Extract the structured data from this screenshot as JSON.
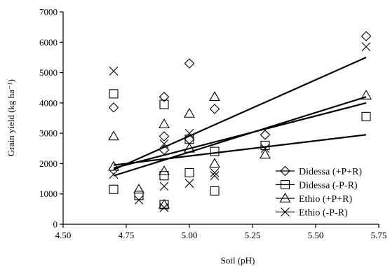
{
  "chart_data": {
    "type": "scatter",
    "xlabel": "Soil (pH)",
    "ylabel": "Grain yield (kg ha⁻¹)",
    "xlim": [
      4.5,
      5.75
    ],
    "ylim": [
      0,
      7000
    ],
    "x_ticks": [
      "4.50",
      "4.75",
      "5.00",
      "5.25",
      "5.50",
      "5.75"
    ],
    "y_ticks": [
      "0",
      "1000",
      "2000",
      "3000",
      "4000",
      "5000",
      "6000",
      "7000"
    ],
    "x_tick_values": [
      4.5,
      4.75,
      5.0,
      5.25,
      5.5,
      5.75
    ],
    "y_tick_values": [
      0,
      1000,
      2000,
      3000,
      4000,
      5000,
      6000,
      7000
    ],
    "grid": false,
    "legend_position": "bottom-right",
    "series": [
      {
        "name": "Didessa (+P+R)",
        "marker": "diamond",
        "points": [
          [
            4.7,
            3850
          ],
          [
            4.9,
            4200
          ],
          [
            4.9,
            2900
          ],
          [
            4.9,
            2450
          ],
          [
            5.0,
            5300
          ],
          [
            5.0,
            2800
          ],
          [
            5.1,
            3800
          ],
          [
            5.3,
            2950
          ],
          [
            5.7,
            6200
          ]
        ],
        "trend": [
          [
            4.7,
            1800
          ],
          [
            5.7,
            5500
          ]
        ]
      },
      {
        "name": "Didessa (-P-R)",
        "marker": "square",
        "points": [
          [
            4.7,
            4300
          ],
          [
            4.7,
            1150
          ],
          [
            4.8,
            950
          ],
          [
            4.9,
            3950
          ],
          [
            4.9,
            1600
          ],
          [
            4.9,
            650
          ],
          [
            5.0,
            2800
          ],
          [
            5.0,
            1700
          ],
          [
            5.1,
            2400
          ],
          [
            5.1,
            1100
          ],
          [
            5.3,
            2600
          ],
          [
            5.7,
            3550
          ]
        ],
        "trend": [
          [
            4.7,
            1850
          ],
          [
            5.7,
            4000
          ]
        ]
      },
      {
        "name": "Ethio (+P+R)",
        "marker": "triangle",
        "points": [
          [
            4.7,
            2900
          ],
          [
            4.7,
            1900
          ],
          [
            4.8,
            1150
          ],
          [
            4.9,
            3300
          ],
          [
            4.9,
            1750
          ],
          [
            4.9,
            650
          ],
          [
            5.0,
            3650
          ],
          [
            5.0,
            2500
          ],
          [
            5.1,
            4200
          ],
          [
            5.1,
            2000
          ],
          [
            5.3,
            2300
          ],
          [
            5.7,
            4250
          ]
        ],
        "trend": [
          [
            4.7,
            1950
          ],
          [
            5.7,
            2950
          ]
        ]
      },
      {
        "name": "Ethio (-P-R)",
        "marker": "cross",
        "points": [
          [
            4.7,
            5050
          ],
          [
            4.7,
            1650
          ],
          [
            4.8,
            800
          ],
          [
            4.9,
            2650
          ],
          [
            4.9,
            1250
          ],
          [
            4.9,
            550
          ],
          [
            5.0,
            3000
          ],
          [
            5.0,
            1350
          ],
          [
            5.1,
            1700
          ],
          [
            5.1,
            1600
          ],
          [
            5.3,
            2500
          ],
          [
            5.7,
            5850
          ]
        ],
        "trend": [
          [
            4.7,
            1600
          ],
          [
            5.7,
            4200
          ]
        ]
      }
    ]
  }
}
